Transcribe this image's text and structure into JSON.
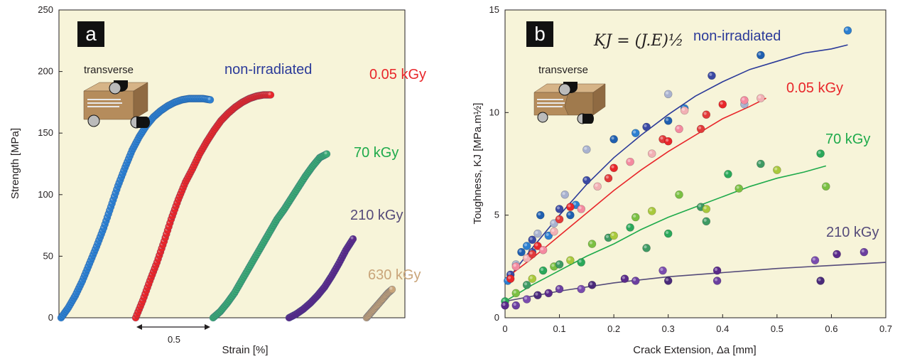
{
  "chart_data": [
    {
      "type": "scatter",
      "panel": "a",
      "xlabel": "Strain [%]",
      "ylabel": "Strength [MPa]",
      "ylim": [
        0,
        250
      ],
      "yticks": [
        "0",
        "50",
        "100",
        "150",
        "200",
        "250"
      ],
      "grid": false,
      "inset_label": "transverse",
      "scale_bar_label": "0.5",
      "series": [
        {
          "name": "non-irradiated",
          "color": "#2b3a99",
          "marker_color": "#2c7fd0",
          "x": [
            0.0,
            0.05,
            0.1,
            0.15,
            0.2,
            0.25,
            0.3,
            0.35,
            0.4,
            0.45,
            0.5,
            0.55,
            0.6,
            0.65,
            0.7,
            0.75,
            0.8,
            0.85,
            0.9,
            0.95,
            1.0,
            1.05
          ],
          "y": [
            0,
            8,
            18,
            30,
            44,
            58,
            73,
            90,
            107,
            122,
            136,
            147,
            156,
            163,
            168,
            172,
            175,
            177,
            178,
            178,
            178,
            177
          ]
        },
        {
          "name": "0.05 kGy",
          "color": "#e8262a",
          "marker_color": "#e8262a",
          "x": [
            0.0,
            0.05,
            0.1,
            0.15,
            0.2,
            0.25,
            0.3,
            0.35,
            0.4,
            0.45,
            0.5,
            0.55,
            0.6,
            0.65,
            0.7,
            0.75,
            0.8,
            0.85,
            0.9,
            0.95
          ],
          "y": [
            0,
            14,
            30,
            45,
            62,
            80,
            96,
            110,
            121,
            133,
            143,
            152,
            160,
            166,
            171,
            175,
            178,
            180,
            181,
            181
          ]
        },
        {
          "name": "70 kGy",
          "color": "#1eaa4b",
          "marker_color": "#3aa874",
          "x": [
            0.0,
            0.05,
            0.1,
            0.15,
            0.2,
            0.25,
            0.3,
            0.35,
            0.4,
            0.45,
            0.5,
            0.55,
            0.6,
            0.65,
            0.7,
            0.75,
            0.8
          ],
          "y": [
            0,
            5,
            12,
            20,
            30,
            40,
            50,
            60,
            70,
            80,
            88,
            97,
            106,
            115,
            123,
            130,
            133
          ]
        },
        {
          "name": "210 kGy",
          "color": "#554b7a",
          "marker_color": "#5a2a8a",
          "x": [
            0.0,
            0.05,
            0.1,
            0.15,
            0.2,
            0.25,
            0.3,
            0.35,
            0.4,
            0.45
          ],
          "y": [
            0,
            3,
            7,
            12,
            18,
            25,
            34,
            44,
            55,
            64
          ]
        },
        {
          "name": "630 kGy",
          "color": "#c9a57a",
          "marker_color": "#c9a57a",
          "x": [
            0.0,
            0.03,
            0.06,
            0.09,
            0.12,
            0.15,
            0.18
          ],
          "y": [
            0,
            4,
            8,
            12,
            16,
            20,
            23
          ]
        }
      ]
    },
    {
      "type": "scatter",
      "panel": "b",
      "xlabel": "Crack Extension, Δa [mm]",
      "ylabel": "Toughness, KJ [MPa.m½]",
      "xlim": [
        0,
        0.7
      ],
      "ylim": [
        0,
        15
      ],
      "xticks": [
        "0",
        "0.1",
        "0.2",
        "0.3",
        "0.4",
        "0.5",
        "0.6",
        "0.7"
      ],
      "yticks": [
        "0",
        "5",
        "10",
        "15"
      ],
      "grid": false,
      "inset_label": "transverse",
      "formula": "KJ = (J.E)½",
      "series": [
        {
          "name": "non-irradiated",
          "color": "#2b3a99",
          "points": [
            [
              0.005,
              1.8
            ],
            [
              0.01,
              2.1
            ],
            [
              0.02,
              2.6
            ],
            [
              0.03,
              3.2
            ],
            [
              0.04,
              3.5
            ],
            [
              0.05,
              3.8
            ],
            [
              0.06,
              4.1
            ],
            [
              0.065,
              5.0
            ],
            [
              0.08,
              4.0
            ],
            [
              0.1,
              5.3
            ],
            [
              0.11,
              6.0
            ],
            [
              0.12,
              5.0
            ],
            [
              0.13,
              5.5
            ],
            [
              0.15,
              6.7
            ],
            [
              0.15,
              8.2
            ],
            [
              0.2,
              8.7
            ],
            [
              0.24,
              9.0
            ],
            [
              0.26,
              9.3
            ],
            [
              0.3,
              10.9
            ],
            [
              0.3,
              9.6
            ],
            [
              0.33,
              10.2
            ],
            [
              0.38,
              11.8
            ],
            [
              0.44,
              10.4
            ],
            [
              0.47,
              12.8
            ],
            [
              0.63,
              14.0
            ],
            [
              0.05,
              3.2
            ],
            [
              0.09,
              4.6
            ]
          ],
          "fit": [
            [
              0.0,
              1.7
            ],
            [
              0.05,
              3.4
            ],
            [
              0.1,
              5.0
            ],
            [
              0.15,
              6.5
            ],
            [
              0.2,
              7.8
            ],
            [
              0.25,
              8.9
            ],
            [
              0.3,
              9.9
            ],
            [
              0.35,
              10.8
            ],
            [
              0.4,
              11.5
            ],
            [
              0.45,
              12.1
            ],
            [
              0.5,
              12.5
            ],
            [
              0.55,
              12.9
            ],
            [
              0.6,
              13.1
            ],
            [
              0.63,
              13.3
            ]
          ]
        },
        {
          "name": "0.05 kGy",
          "color": "#e8262a",
          "points": [
            [
              0.01,
              1.9
            ],
            [
              0.02,
              2.5
            ],
            [
              0.04,
              2.9
            ],
            [
              0.05,
              3.1
            ],
            [
              0.06,
              3.5
            ],
            [
              0.07,
              3.3
            ],
            [
              0.09,
              4.2
            ],
            [
              0.1,
              4.8
            ],
            [
              0.12,
              5.4
            ],
            [
              0.14,
              5.3
            ],
            [
              0.17,
              6.4
            ],
            [
              0.19,
              6.8
            ],
            [
              0.2,
              7.3
            ],
            [
              0.23,
              7.6
            ],
            [
              0.27,
              8.0
            ],
            [
              0.29,
              8.7
            ],
            [
              0.3,
              8.6
            ],
            [
              0.32,
              9.2
            ],
            [
              0.33,
              10.1
            ],
            [
              0.37,
              9.9
            ],
            [
              0.4,
              10.4
            ],
            [
              0.44,
              10.6
            ],
            [
              0.47,
              10.7
            ],
            [
              0.36,
              9.2
            ]
          ],
          "fit": [
            [
              0.0,
              1.9
            ],
            [
              0.05,
              2.9
            ],
            [
              0.1,
              4.0
            ],
            [
              0.15,
              5.1
            ],
            [
              0.2,
              6.2
            ],
            [
              0.25,
              7.2
            ],
            [
              0.3,
              8.1
            ],
            [
              0.35,
              8.9
            ],
            [
              0.4,
              9.7
            ],
            [
              0.45,
              10.3
            ],
            [
              0.48,
              10.7
            ]
          ]
        },
        {
          "name": "70 kGy",
          "color": "#1eaa4b",
          "points": [
            [
              0.0,
              0.8
            ],
            [
              0.02,
              1.2
            ],
            [
              0.04,
              1.6
            ],
            [
              0.05,
              1.9
            ],
            [
              0.07,
              2.3
            ],
            [
              0.09,
              2.5
            ],
            [
              0.1,
              2.6
            ],
            [
              0.12,
              2.8
            ],
            [
              0.14,
              2.7
            ],
            [
              0.16,
              3.6
            ],
            [
              0.19,
              3.9
            ],
            [
              0.2,
              4.0
            ],
            [
              0.23,
              4.4
            ],
            [
              0.24,
              4.9
            ],
            [
              0.26,
              3.4
            ],
            [
              0.27,
              5.2
            ],
            [
              0.3,
              4.1
            ],
            [
              0.32,
              6.0
            ],
            [
              0.36,
              5.4
            ],
            [
              0.37,
              5.3
            ],
            [
              0.41,
              7.0
            ],
            [
              0.43,
              6.3
            ],
            [
              0.47,
              7.5
            ],
            [
              0.5,
              7.2
            ],
            [
              0.58,
              8.0
            ],
            [
              0.59,
              6.4
            ],
            [
              0.37,
              4.7
            ]
          ],
          "fit": [
            [
              0.0,
              0.8
            ],
            [
              0.05,
              1.6
            ],
            [
              0.1,
              2.3
            ],
            [
              0.15,
              3.0
            ],
            [
              0.2,
              3.6
            ],
            [
              0.25,
              4.3
            ],
            [
              0.3,
              4.9
            ],
            [
              0.35,
              5.4
            ],
            [
              0.4,
              5.9
            ],
            [
              0.45,
              6.4
            ],
            [
              0.5,
              6.8
            ],
            [
              0.55,
              7.1
            ],
            [
              0.59,
              7.4
            ]
          ]
        },
        {
          "name": "210 kGy",
          "color": "#554b7a",
          "points": [
            [
              0.0,
              0.6
            ],
            [
              0.02,
              0.6
            ],
            [
              0.04,
              0.9
            ],
            [
              0.06,
              1.1
            ],
            [
              0.08,
              1.2
            ],
            [
              0.1,
              1.4
            ],
            [
              0.14,
              1.4
            ],
            [
              0.16,
              1.6
            ],
            [
              0.22,
              1.9
            ],
            [
              0.24,
              1.8
            ],
            [
              0.29,
              2.3
            ],
            [
              0.3,
              1.8
            ],
            [
              0.39,
              2.3
            ],
            [
              0.39,
              1.8
            ],
            [
              0.57,
              2.8
            ],
            [
              0.58,
              1.8
            ],
            [
              0.61,
              3.1
            ],
            [
              0.66,
              3.2
            ]
          ],
          "fit": [
            [
              0.0,
              0.8
            ],
            [
              0.1,
              1.3
            ],
            [
              0.2,
              1.7
            ],
            [
              0.3,
              2.0
            ],
            [
              0.4,
              2.2
            ],
            [
              0.5,
              2.4
            ],
            [
              0.6,
              2.55
            ],
            [
              0.7,
              2.7
            ]
          ]
        }
      ]
    }
  ],
  "labels": {
    "a_letter": "a",
    "b_letter": "b"
  }
}
